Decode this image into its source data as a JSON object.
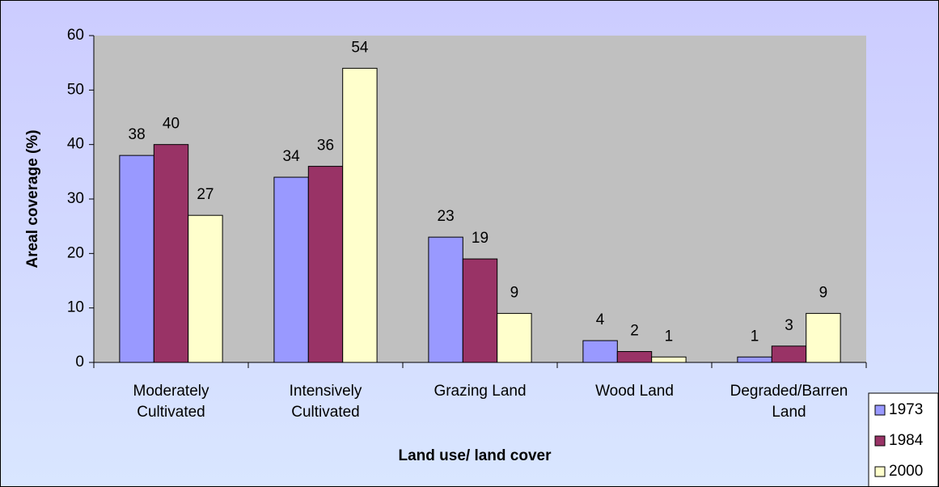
{
  "chart_data": {
    "type": "bar",
    "xlabel": "Land use/ land cover",
    "ylabel": "Areal coverage (%)",
    "categories": [
      "Moderately Cultivated",
      "Intensively Cultivated",
      "Grazing Land",
      "Wood Land",
      "Degraded/Barren Land"
    ],
    "series": [
      {
        "name": "1973",
        "color": "#9999ff",
        "values": [
          38,
          34,
          23,
          4,
          1
        ]
      },
      {
        "name": "1984",
        "color": "#993366",
        "values": [
          40,
          36,
          19,
          2,
          3
        ]
      },
      {
        "name": "2000",
        "color": "#ffffcc",
        "values": [
          27,
          54,
          9,
          1,
          9
        ]
      }
    ],
    "ylim": [
      0,
      60
    ],
    "yticks": [
      0,
      10,
      20,
      30,
      40,
      50,
      60
    ],
    "plot_background": "#c0c0c0",
    "legend": "bottom-right"
  }
}
